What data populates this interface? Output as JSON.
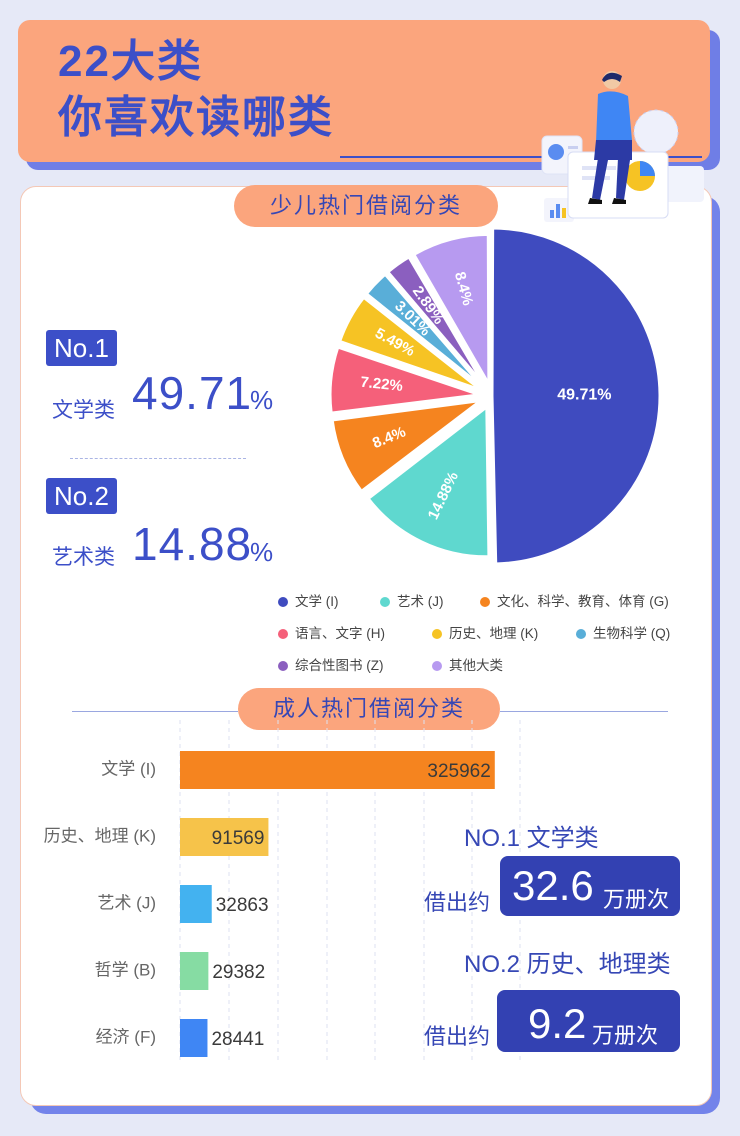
{
  "header": {
    "title_line1": "22大类",
    "title_line2": "你喜欢读哪类"
  },
  "kids": {
    "section_title": "少儿热门借阅分类",
    "rank1": {
      "tag": "No.1",
      "category": "文学类",
      "value": "49.71",
      "unit": "%"
    },
    "rank2": {
      "tag": "No.2",
      "category": "艺术类",
      "value": "14.88",
      "unit": "%"
    }
  },
  "adult": {
    "section_title": "成人热门借阅分类",
    "stat1": {
      "title": "NO.1 文学类",
      "prefix": "借出约",
      "number": "32.6",
      "unit": "万册次"
    },
    "stat2": {
      "title": "NO.2 历史、地理类",
      "prefix": "借出约",
      "number": "9.2",
      "unit": "万册次"
    }
  },
  "chart_data": [
    {
      "type": "pie",
      "slices": [
        {
          "label": "文学 (I)",
          "value": 49.71,
          "text": "49.71%",
          "color": "#3f4bbf"
        },
        {
          "label": "艺术 (J)",
          "value": 14.88,
          "text": "14.88%",
          "color": "#5fd8cf"
        },
        {
          "label": "文化、科学、教育、体育 (G)",
          "value": 8.4,
          "text": "8.4%",
          "color": "#f5841f"
        },
        {
          "label": "语言、文字 (H)",
          "value": 7.22,
          "text": "7.22%",
          "color": "#f5607a"
        },
        {
          "label": "历史、地理 (K)",
          "value": 5.49,
          "text": "5.49%",
          "color": "#f6c324"
        },
        {
          "label": "生物科学 (Q)",
          "value": 3.01,
          "text": "3.01%",
          "color": "#59aed8"
        },
        {
          "label": "综合性图书 (Z)",
          "value": 2.89,
          "text": "2.89%",
          "color": "#8b5fbf"
        },
        {
          "label": "其他大类",
          "value": 8.4,
          "text": "8.4%",
          "color": "#b79af0"
        }
      ]
    },
    {
      "type": "bar",
      "orientation": "horizontal",
      "categories": [
        "文学 (I)",
        "历史、地理 (K)",
        "艺术 (J)",
        "哲学 (B)",
        "经济 (F)"
      ],
      "values": [
        325962,
        91569,
        32863,
        29382,
        28441
      ],
      "colors": [
        "#f5841f",
        "#f6c34a",
        "#43b2f0",
        "#86dca3",
        "#3f86f4"
      ],
      "xlim": [
        0,
        350000
      ]
    }
  ]
}
